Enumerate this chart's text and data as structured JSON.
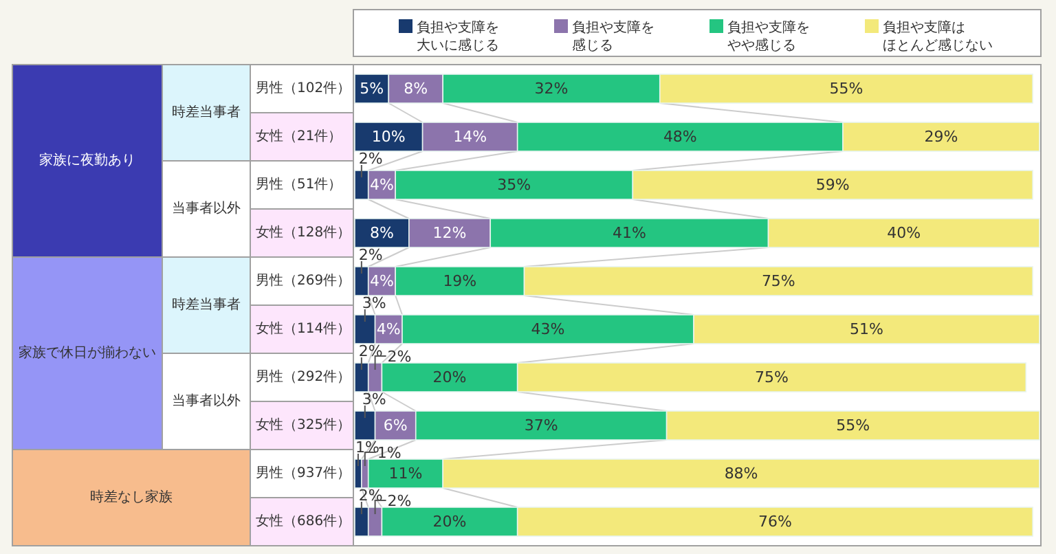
{
  "chart_data": {
    "type": "bar",
    "orientation": "horizontal",
    "stacked": true,
    "legend": "top",
    "categories": [
      "男性（102件）",
      "女性（21件）",
      "男性（51件）",
      "女性（128件）",
      "男性（269件）",
      "女性（114件）",
      "男性（292件）",
      "女性（325件）",
      "男性（937件）",
      "女性（686件）"
    ],
    "annotations": [
      "家族に夜勤あり",
      "時差当事者",
      "当事者以外",
      "家族で休日が揃わない",
      "時差当事者",
      "当事者以外",
      "時差なし家族"
    ],
    "series": [
      {
        "name": "負担や支障を大いに感じる",
        "color": "#183a6e",
        "values": [
          5,
          10,
          2,
          8,
          2,
          3,
          2,
          3,
          1,
          2
        ],
        "value_labels": [
          "5%",
          "10%",
          "2%",
          "8%",
          "2%",
          "3%",
          "2%",
          "3%",
          "1%",
          "2%"
        ]
      },
      {
        "name": "負担や支障を感じる",
        "color": "#8c74ac",
        "values": [
          8,
          14,
          4,
          12,
          4,
          4,
          2,
          6,
          1,
          2
        ],
        "value_labels": [
          "8%",
          "14%",
          "4%",
          "12%",
          "4%",
          "4%",
          "2%",
          "6%",
          "1%",
          "2%"
        ]
      },
      {
        "name": "負担や支障をやや感じる",
        "color": "#24c581",
        "values": [
          32,
          48,
          35,
          41,
          19,
          43,
          20,
          37,
          11,
          20
        ],
        "value_labels": [
          "32%",
          "48%",
          "35%",
          "41%",
          "19%",
          "43%",
          "20%",
          "37%",
          "11%",
          "20%"
        ]
      },
      {
        "name": "負担や支障はほとんど感じない",
        "color": "#f3e97b",
        "values": [
          55,
          29,
          59,
          40,
          75,
          51,
          75,
          55,
          88,
          76
        ],
        "value_labels": [
          "55%",
          "29%",
          "59%",
          "40%",
          "75%",
          "51%",
          "75%",
          "55%",
          "88%",
          "76%"
        ]
      }
    ]
  }
}
